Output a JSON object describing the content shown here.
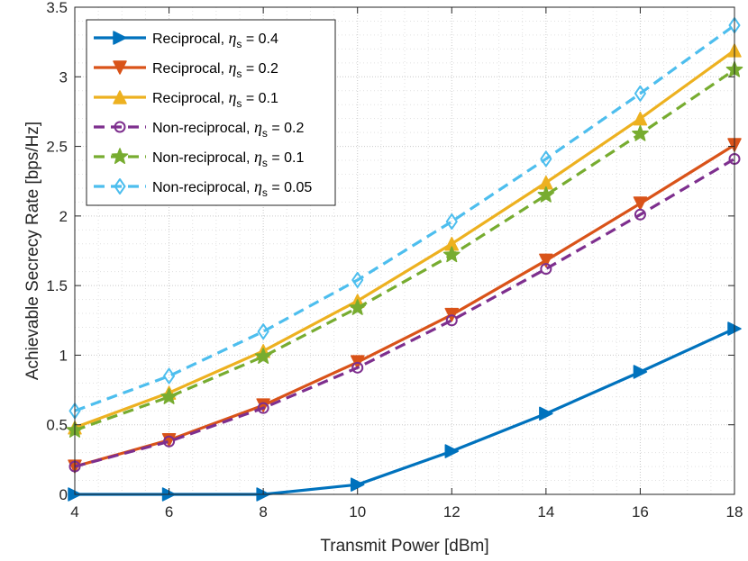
{
  "chart_data": {
    "type": "line",
    "xlabel": "Transmit Power [dBm]",
    "ylabel": "Achievable Secrecy Rate [bps/Hz]",
    "xlim": [
      4,
      18
    ],
    "ylim": [
      0,
      3.5
    ],
    "xticks": [
      4,
      6,
      8,
      10,
      12,
      14,
      16,
      18
    ],
    "yticks": [
      0,
      0.5,
      1,
      1.5,
      2,
      2.5,
      3,
      3.5
    ],
    "ytick_labels": [
      "0",
      "0.5",
      "1",
      "1.5",
      "2",
      "2.5",
      "3",
      "3.5"
    ],
    "grid": true,
    "legend_position": "top-left",
    "x": [
      4,
      6,
      8,
      10,
      12,
      14,
      16,
      18
    ],
    "series": [
      {
        "name": "Reciprocal",
        "eta": "0.4",
        "color": "#0072BD",
        "dash": "solid",
        "marker": "triangle-right",
        "values": [
          0.0,
          0.0,
          0.0,
          0.07,
          0.31,
          0.58,
          0.88,
          1.19
        ]
      },
      {
        "name": "Reciprocal",
        "eta": "0.2",
        "color": "#D95319",
        "dash": "solid",
        "marker": "triangle-down",
        "values": [
          0.2,
          0.39,
          0.64,
          0.95,
          1.29,
          1.68,
          2.09,
          2.51
        ]
      },
      {
        "name": "Reciprocal",
        "eta": "0.1",
        "color": "#EDB120",
        "dash": "solid",
        "marker": "triangle-up",
        "values": [
          0.48,
          0.73,
          1.03,
          1.39,
          1.8,
          2.24,
          2.7,
          3.19
        ]
      },
      {
        "name": "Non-reciprocal",
        "eta": "0.2",
        "color": "#7E2F8E",
        "dash": "dashed",
        "marker": "circle",
        "values": [
          0.2,
          0.38,
          0.62,
          0.91,
          1.25,
          1.62,
          2.01,
          2.41
        ]
      },
      {
        "name": "Non-reciprocal",
        "eta": "0.1",
        "color": "#77AC30",
        "dash": "dashed",
        "marker": "star",
        "values": [
          0.46,
          0.7,
          0.99,
          1.34,
          1.72,
          2.15,
          2.59,
          3.05
        ]
      },
      {
        "name": "Non-reciprocal",
        "eta": "0.05",
        "color": "#4DBEEE",
        "dash": "dashed",
        "marker": "diamond",
        "values": [
          0.6,
          0.85,
          1.17,
          1.54,
          1.96,
          2.41,
          2.88,
          3.37
        ]
      }
    ]
  }
}
